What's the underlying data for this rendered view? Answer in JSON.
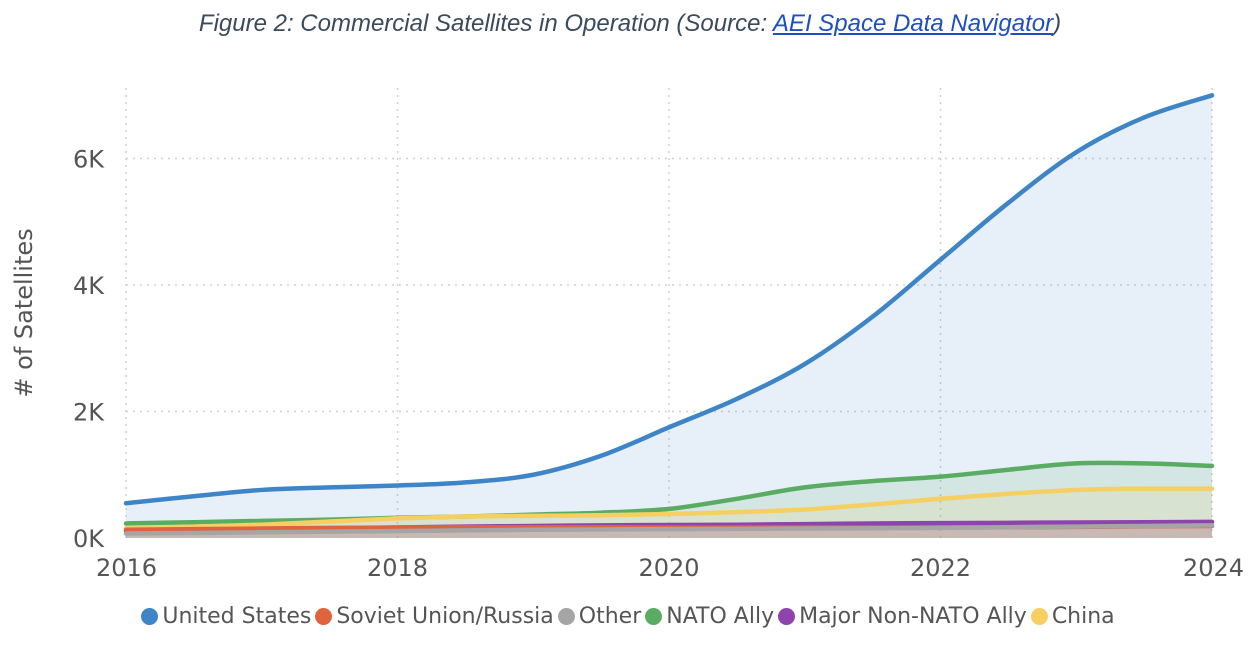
{
  "caption": {
    "prefix": "Figure 2: Commercial Satellites in Operation (Source: ",
    "link_text": "AEI Space Data Navigator",
    "suffix": ")"
  },
  "chart_data": {
    "type": "area",
    "x": [
      2016,
      2016.5,
      2017,
      2017.5,
      2018,
      2018.5,
      2019,
      2019.5,
      2020,
      2020.5,
      2021,
      2021.5,
      2022,
      2022.5,
      2023,
      2023.5,
      2024
    ],
    "xticks": [
      2016,
      2018,
      2020,
      2022,
      2024
    ],
    "xtick_labels": [
      "2016",
      "2018",
      "2020",
      "2022",
      "2024"
    ],
    "xlim": [
      2016,
      2024
    ],
    "ylim": [
      0,
      7400
    ],
    "yticks": [
      0,
      2000,
      4000,
      6000
    ],
    "ytick_labels": [
      "0K",
      "2K",
      "4K",
      "6K"
    ],
    "ylabel": "# of Satellites",
    "xlabel": "",
    "grid": true,
    "legend_position": "bottom",
    "series": [
      {
        "name": "United States",
        "color": "#3d85c6",
        "values": [
          550,
          660,
          760,
          800,
          830,
          880,
          1000,
          1300,
          1750,
          2200,
          2750,
          3500,
          4400,
          5300,
          6100,
          6650,
          7000
        ]
      },
      {
        "name": "Soviet Union/Russia",
        "color": "#e0633f",
        "values": [
          130,
          140,
          150,
          160,
          165,
          170,
          170,
          170,
          165,
          165,
          165,
          165,
          165,
          170,
          175,
          185,
          190
        ]
      },
      {
        "name": "Other",
        "color": "#a5a5a5",
        "values": [
          70,
          80,
          90,
          100,
          110,
          120,
          130,
          135,
          140,
          145,
          150,
          155,
          160,
          170,
          180,
          190,
          200
        ]
      },
      {
        "name": "NATO Ally",
        "color": "#5aac62",
        "values": [
          230,
          250,
          270,
          290,
          320,
          340,
          370,
          400,
          460,
          620,
          800,
          900,
          970,
          1080,
          1180,
          1180,
          1140
        ]
      },
      {
        "name": "Major Non-NATO Ally",
        "color": "#8e44ad",
        "values": [
          110,
          120,
          135,
          150,
          165,
          180,
          190,
          200,
          205,
          210,
          220,
          230,
          235,
          240,
          245,
          250,
          255
        ]
      },
      {
        "name": "China",
        "color": "#f6cf62",
        "values": [
          150,
          180,
          210,
          260,
          310,
          340,
          350,
          360,
          380,
          410,
          450,
          530,
          620,
          700,
          760,
          780,
          780
        ]
      }
    ]
  }
}
